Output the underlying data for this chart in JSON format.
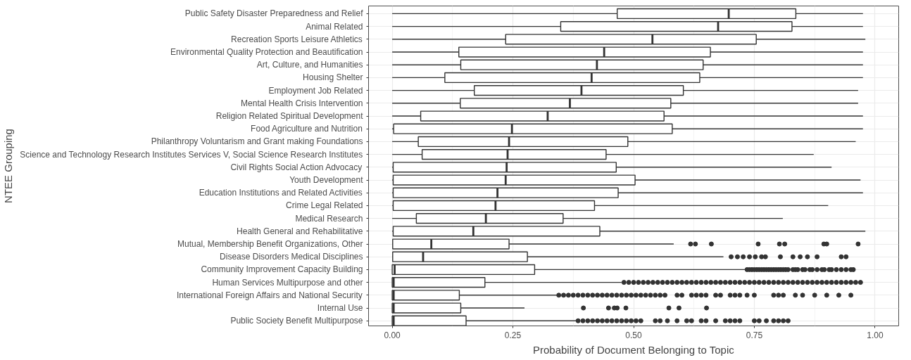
{
  "chart_data": {
    "type": "box",
    "orientation": "horizontal",
    "xlabel": "Probability of Document Belonging to Topic",
    "ylabel": "NTEE Grouping",
    "categories": [
      "Public Safety Disaster Preparedness and Relief",
      "Animal Related",
      "Recreation Sports Leisure Athletics",
      "Environmental Quality Protection and Beautification",
      "Art, Culture, and Humanities",
      "Housing Shelter",
      "Employment Job Related",
      "Mental Health Crisis Intervention",
      "Religion Related Spiritual Development",
      "Food Agriculture and Nutrition",
      "Philanthropy Voluntarism and Grant making Foundations",
      "Science and Technology Research Institutes Services V, Social Science Research Institutes",
      "Civil Rights Social Action Advocacy",
      "Youth Development",
      "Education Institutions and Related Activities",
      "Crime Legal Related",
      "Medical Research",
      "Health General and Rehabilitative",
      "Mutual, Membership Benefit Organizations, Other",
      "Disease Disorders Medical Disciplines",
      "Community Improvement Capacity Building",
      "Human Services Multipurpose and other",
      "International Foreign Affairs and National Security",
      "Internal Use",
      "Public Society Benefit Multipurpose"
    ],
    "color": "#333333",
    "boxes": [
      {
        "low": 0,
        "q1": 0.466,
        "median": 0.697,
        "q3": 0.836,
        "high": 0.975
      },
      {
        "low": 0,
        "q1": 0.349,
        "median": 0.675,
        "q3": 0.828,
        "high": 0.975
      },
      {
        "low": 0,
        "q1": 0.235,
        "median": 0.539,
        "q3": 0.754,
        "high": 0.98
      },
      {
        "low": 0,
        "q1": 0.138,
        "median": 0.439,
        "q3": 0.659,
        "high": 0.975
      },
      {
        "low": 0,
        "q1": 0.142,
        "median": 0.424,
        "q3": 0.644,
        "high": 0.975
      },
      {
        "low": 0,
        "q1": 0.109,
        "median": 0.413,
        "q3": 0.637,
        "high": 0.975
      },
      {
        "low": 0,
        "q1": 0.17,
        "median": 0.392,
        "q3": 0.603,
        "high": 0.965
      },
      {
        "low": 0,
        "q1": 0.141,
        "median": 0.368,
        "q3": 0.577,
        "high": 0.965
      },
      {
        "low": 0,
        "q1": 0.059,
        "median": 0.322,
        "q3": 0.563,
        "high": 0.975
      },
      {
        "low": 0,
        "q1": 0.003,
        "median": 0.248,
        "q3": 0.58,
        "high": 0.975
      },
      {
        "low": 0,
        "q1": 0.054,
        "median": 0.242,
        "q3": 0.488,
        "high": 0.96
      },
      {
        "low": 0,
        "q1": 0.062,
        "median": 0.239,
        "q3": 0.443,
        "high": 0.873
      },
      {
        "low": 0,
        "q1": 0.002,
        "median": 0.237,
        "q3": 0.464,
        "high": 0.91
      },
      {
        "low": 0,
        "q1": 0.002,
        "median": 0.235,
        "q3": 0.503,
        "high": 0.97
      },
      {
        "low": 0,
        "q1": 0.002,
        "median": 0.218,
        "q3": 0.468,
        "high": 0.975
      },
      {
        "low": 0,
        "q1": 0.002,
        "median": 0.214,
        "q3": 0.419,
        "high": 0.903
      },
      {
        "low": 0,
        "q1": 0.05,
        "median": 0.194,
        "q3": 0.354,
        "high": 0.809
      },
      {
        "low": 0,
        "q1": 0.002,
        "median": 0.168,
        "q3": 0.43,
        "high": 0.98
      },
      {
        "low": 0,
        "q1": 0.001,
        "median": 0.081,
        "q3": 0.242,
        "high": 0.583,
        "outliers": [
          0.618,
          0.628,
          0.661,
          0.758,
          0.802,
          0.813,
          0.894,
          0.9,
          0.965
        ]
      },
      {
        "low": 0,
        "q1": 0.001,
        "median": 0.064,
        "q3": 0.28,
        "high": 0.686,
        "outliers": [
          0.702,
          0.715,
          0.727,
          0.74,
          0.752,
          0.765,
          0.773,
          0.804,
          0.83,
          0.845,
          0.86,
          0.88,
          0.93,
          0.94
        ]
      },
      {
        "low": 0,
        "q1": 0,
        "median": 0.005,
        "q3": 0.295,
        "high": 0.732,
        "outliers": [
          0.735,
          0.74,
          0.745,
          0.75,
          0.755,
          0.76,
          0.765,
          0.77,
          0.775,
          0.78,
          0.785,
          0.79,
          0.795,
          0.8,
          0.805,
          0.81,
          0.815,
          0.82,
          0.83,
          0.835,
          0.84,
          0.85,
          0.855,
          0.865,
          0.87,
          0.88,
          0.89,
          0.895,
          0.905,
          0.91,
          0.92,
          0.93,
          0.94,
          0.95,
          0.955
        ]
      },
      {
        "low": 0,
        "q1": 0,
        "median": 0.003,
        "q3": 0.192,
        "high": 0.475,
        "outliers": [
          0.48,
          0.49,
          0.5,
          0.51,
          0.52,
          0.53,
          0.54,
          0.55,
          0.56,
          0.57,
          0.58,
          0.59,
          0.6,
          0.61,
          0.62,
          0.63,
          0.64,
          0.65,
          0.66,
          0.67,
          0.68,
          0.69,
          0.7,
          0.71,
          0.72,
          0.73,
          0.74,
          0.75,
          0.76,
          0.77,
          0.78,
          0.79,
          0.8,
          0.81,
          0.82,
          0.83,
          0.84,
          0.85,
          0.86,
          0.87,
          0.88,
          0.89,
          0.9,
          0.91,
          0.92,
          0.93,
          0.94,
          0.95,
          0.96,
          0.97
        ]
      },
      {
        "low": 0,
        "q1": 0,
        "median": 0.003,
        "q3": 0.139,
        "high": 0.342,
        "outliers": [
          0.345,
          0.355,
          0.365,
          0.375,
          0.385,
          0.395,
          0.405,
          0.415,
          0.425,
          0.435,
          0.445,
          0.455,
          0.465,
          0.475,
          0.485,
          0.495,
          0.505,
          0.515,
          0.525,
          0.535,
          0.545,
          0.555,
          0.565,
          0.59,
          0.6,
          0.62,
          0.63,
          0.64,
          0.65,
          0.67,
          0.68,
          0.7,
          0.71,
          0.72,
          0.735,
          0.75,
          0.79,
          0.8,
          0.81,
          0.835,
          0.85,
          0.875,
          0.9,
          0.925,
          0.95
        ]
      },
      {
        "low": 0,
        "q1": 0,
        "median": 0.003,
        "q3": 0.142,
        "high": 0.274,
        "outliers": [
          0.396,
          0.448,
          0.46,
          0.466,
          0.484,
          0.573,
          0.594,
          0.651
        ]
      },
      {
        "low": 0,
        "q1": 0,
        "median": 0.003,
        "q3": 0.153,
        "high": 0.382,
        "outliers": [
          0.385,
          0.395,
          0.405,
          0.415,
          0.425,
          0.435,
          0.445,
          0.455,
          0.465,
          0.475,
          0.485,
          0.495,
          0.505,
          0.515,
          0.545,
          0.555,
          0.57,
          0.59,
          0.61,
          0.62,
          0.64,
          0.65,
          0.67,
          0.69,
          0.7,
          0.71,
          0.72,
          0.75,
          0.76,
          0.775,
          0.79,
          0.8,
          0.81,
          0.82
        ]
      }
    ],
    "xlim": [
      -0.049,
      1.049
    ],
    "xticks": [
      {
        "value": 0,
        "label": "0.00"
      },
      {
        "value": 0.25,
        "label": "0.25"
      },
      {
        "value": 0.5,
        "label": "0.50"
      },
      {
        "value": 0.75,
        "label": "0.75"
      },
      {
        "value": 1,
        "label": "1.00"
      }
    ],
    "grid": true
  }
}
